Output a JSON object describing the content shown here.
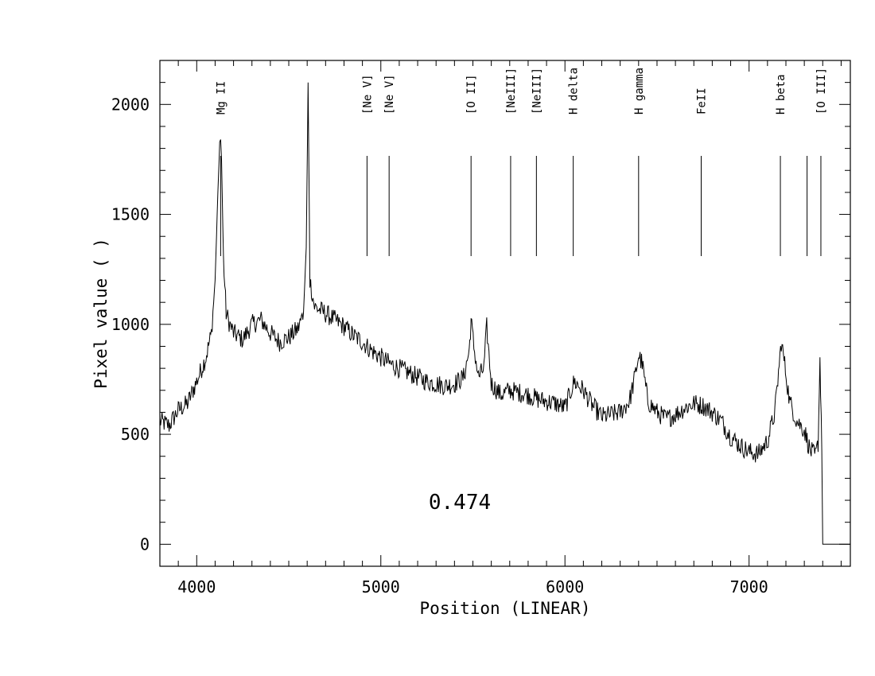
{
  "chart_data": {
    "type": "line",
    "title": "",
    "xlabel": "Position (LINEAR)",
    "ylabel": "Pixel value ( )",
    "xlim": [
      3800,
      7550
    ],
    "ylim": [
      -100,
      2200
    ],
    "x_ticks": [
      4000,
      5000,
      6000,
      7000
    ],
    "y_ticks": [
      0,
      500,
      1000,
      1500,
      2000
    ],
    "x_tick_labels": [
      "4000",
      "5000",
      "6000",
      "7000"
    ],
    "y_tick_labels": [
      "0",
      "500",
      "1000",
      "1500",
      "2000"
    ],
    "grid": false,
    "legend": "none",
    "annotation": "0.474",
    "line_markers": [
      {
        "label": "Mg II",
        "x": 4130
      },
      {
        "label": "[Ne V]",
        "x": 4925
      },
      {
        "label": "[Ne V]",
        "x": 5045
      },
      {
        "label": "[O II]",
        "x": 5490
      },
      {
        "label": "[NeIII]",
        "x": 5705
      },
      {
        "label": "[NeIII]",
        "x": 5845
      },
      {
        "label": "H delta",
        "x": 6045
      },
      {
        "label": "H gamma",
        "x": 6400
      },
      {
        "label": "FeII",
        "x": 6740
      },
      {
        "label": "H beta",
        "x": 7170
      },
      {
        "label": "",
        "x": 7315
      },
      {
        "label": "[O III]",
        "x": 7390
      }
    ],
    "series": [
      {
        "color": "#000000",
        "x": [
          3800,
          3850,
          3900,
          3950,
          4000,
          4050,
          4080,
          4100,
          4115,
          4125,
          4130,
          4135,
          4145,
          4160,
          4180,
          4200,
          4250,
          4300,
          4350,
          4400,
          4450,
          4500,
          4550,
          4580,
          4595,
          4605,
          4615,
          4640,
          4700,
          4750,
          4800,
          4850,
          4900,
          4950,
          5000,
          5050,
          5100,
          5150,
          5200,
          5250,
          5300,
          5350,
          5400,
          5450,
          5480,
          5490,
          5505,
          5530,
          5560,
          5575,
          5600,
          5650,
          5700,
          5750,
          5800,
          5850,
          5900,
          5950,
          6000,
          6050,
          6100,
          6150,
          6200,
          6250,
          6300,
          6350,
          6380,
          6400,
          6420,
          6450,
          6500,
          6550,
          6600,
          6650,
          6700,
          6750,
          6800,
          6850,
          6900,
          6950,
          7000,
          7050,
          7100,
          7140,
          7160,
          7175,
          7190,
          7220,
          7260,
          7300,
          7330,
          7360,
          7375,
          7385,
          7395,
          7400,
          7420,
          7480,
          7550
        ],
        "values": [
          560,
          540,
          610,
          640,
          740,
          850,
          960,
          1200,
          1600,
          1830,
          1840,
          1750,
          1300,
          1050,
          1000,
          960,
          930,
          1000,
          1020,
          960,
          920,
          940,
          980,
          1050,
          1350,
          2100,
          1200,
          1080,
          1050,
          1020,
          990,
          950,
          920,
          880,
          850,
          820,
          800,
          780,
          760,
          740,
          730,
          720,
          730,
          760,
          880,
          1020,
          900,
          760,
          800,
          990,
          730,
          680,
          700,
          690,
          680,
          660,
          650,
          640,
          620,
          740,
          700,
          630,
          580,
          590,
          600,
          650,
          760,
          860,
          820,
          650,
          600,
          570,
          590,
          620,
          640,
          630,
          600,
          560,
          490,
          450,
          420,
          410,
          470,
          600,
          780,
          920,
          840,
          650,
          560,
          520,
          430,
          400,
          460,
          840,
          450,
          0,
          0,
          0,
          0
        ]
      }
    ]
  }
}
